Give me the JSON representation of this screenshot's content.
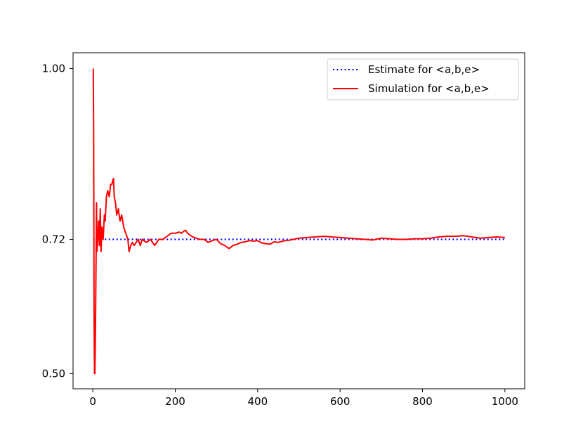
{
  "chart_data": {
    "type": "line",
    "title": "",
    "xlabel": "",
    "ylabel": "",
    "xlim": [
      -48,
      1048
    ],
    "ylim": [
      0.475,
      1.026
    ],
    "xticks": [
      0,
      200,
      400,
      600,
      800,
      1000
    ],
    "xtick_labels": [
      "0",
      "200",
      "400",
      "600",
      "800",
      "1000"
    ],
    "yticks": [
      0.5,
      0.72,
      1.0
    ],
    "ytick_labels": [
      "0.50",
      "0.72",
      "1.00"
    ],
    "grid": false,
    "legend_position": "top-right",
    "series": [
      {
        "name": "Estimate for <a,b,e>",
        "style": "dotted",
        "color": "#0000ff",
        "x": [
          1,
          1000
        ],
        "y": [
          0.72,
          0.72
        ]
      },
      {
        "name": "Simulation for <a,b,e>",
        "style": "solid",
        "color": "#ff0000",
        "x": [
          1,
          2,
          3,
          4,
          5,
          6,
          7,
          8,
          9,
          10,
          12,
          14,
          16,
          18,
          20,
          22,
          25,
          28,
          30,
          33,
          36,
          40,
          43,
          46,
          50,
          52,
          55,
          58,
          62,
          66,
          70,
          75,
          80,
          85,
          88,
          92,
          96,
          100,
          105,
          110,
          115,
          120,
          130,
          140,
          150,
          160,
          170,
          180,
          190,
          200,
          210,
          215,
          220,
          225,
          230,
          240,
          250,
          260,
          270,
          280,
          290,
          300,
          310,
          320,
          330,
          335,
          340,
          350,
          360,
          370,
          380,
          390,
          400,
          410,
          420,
          430,
          440,
          450,
          460,
          470,
          480,
          500,
          520,
          540,
          560,
          580,
          600,
          620,
          640,
          660,
          680,
          700,
          720,
          740,
          760,
          780,
          800,
          820,
          840,
          860,
          880,
          900,
          920,
          940,
          960,
          980,
          1000
        ],
        "y": [
          1.0,
          0.9,
          0.6,
          0.5,
          0.5,
          0.55,
          0.62,
          0.7,
          0.78,
          0.7,
          0.72,
          0.75,
          0.71,
          0.77,
          0.7,
          0.74,
          0.72,
          0.76,
          0.75,
          0.79,
          0.8,
          0.79,
          0.81,
          0.81,
          0.82,
          0.79,
          0.78,
          0.76,
          0.77,
          0.75,
          0.76,
          0.74,
          0.73,
          0.72,
          0.7,
          0.71,
          0.715,
          0.71,
          0.715,
          0.72,
          0.71,
          0.72,
          0.715,
          0.72,
          0.71,
          0.72,
          0.72,
          0.725,
          0.73,
          0.73,
          0.732,
          0.73,
          0.733,
          0.735,
          0.73,
          0.725,
          0.722,
          0.72,
          0.72,
          0.715,
          0.718,
          0.72,
          0.713,
          0.71,
          0.705,
          0.707,
          0.71,
          0.712,
          0.715,
          0.716,
          0.718,
          0.717,
          0.718,
          0.714,
          0.713,
          0.712,
          0.716,
          0.715,
          0.717,
          0.718,
          0.719,
          0.722,
          0.723,
          0.724,
          0.725,
          0.724,
          0.723,
          0.722,
          0.721,
          0.72,
          0.719,
          0.722,
          0.721,
          0.72,
          0.72,
          0.721,
          0.721,
          0.722,
          0.724,
          0.725,
          0.725,
          0.726,
          0.724,
          0.722,
          0.723,
          0.724,
          0.723
        ]
      }
    ]
  }
}
